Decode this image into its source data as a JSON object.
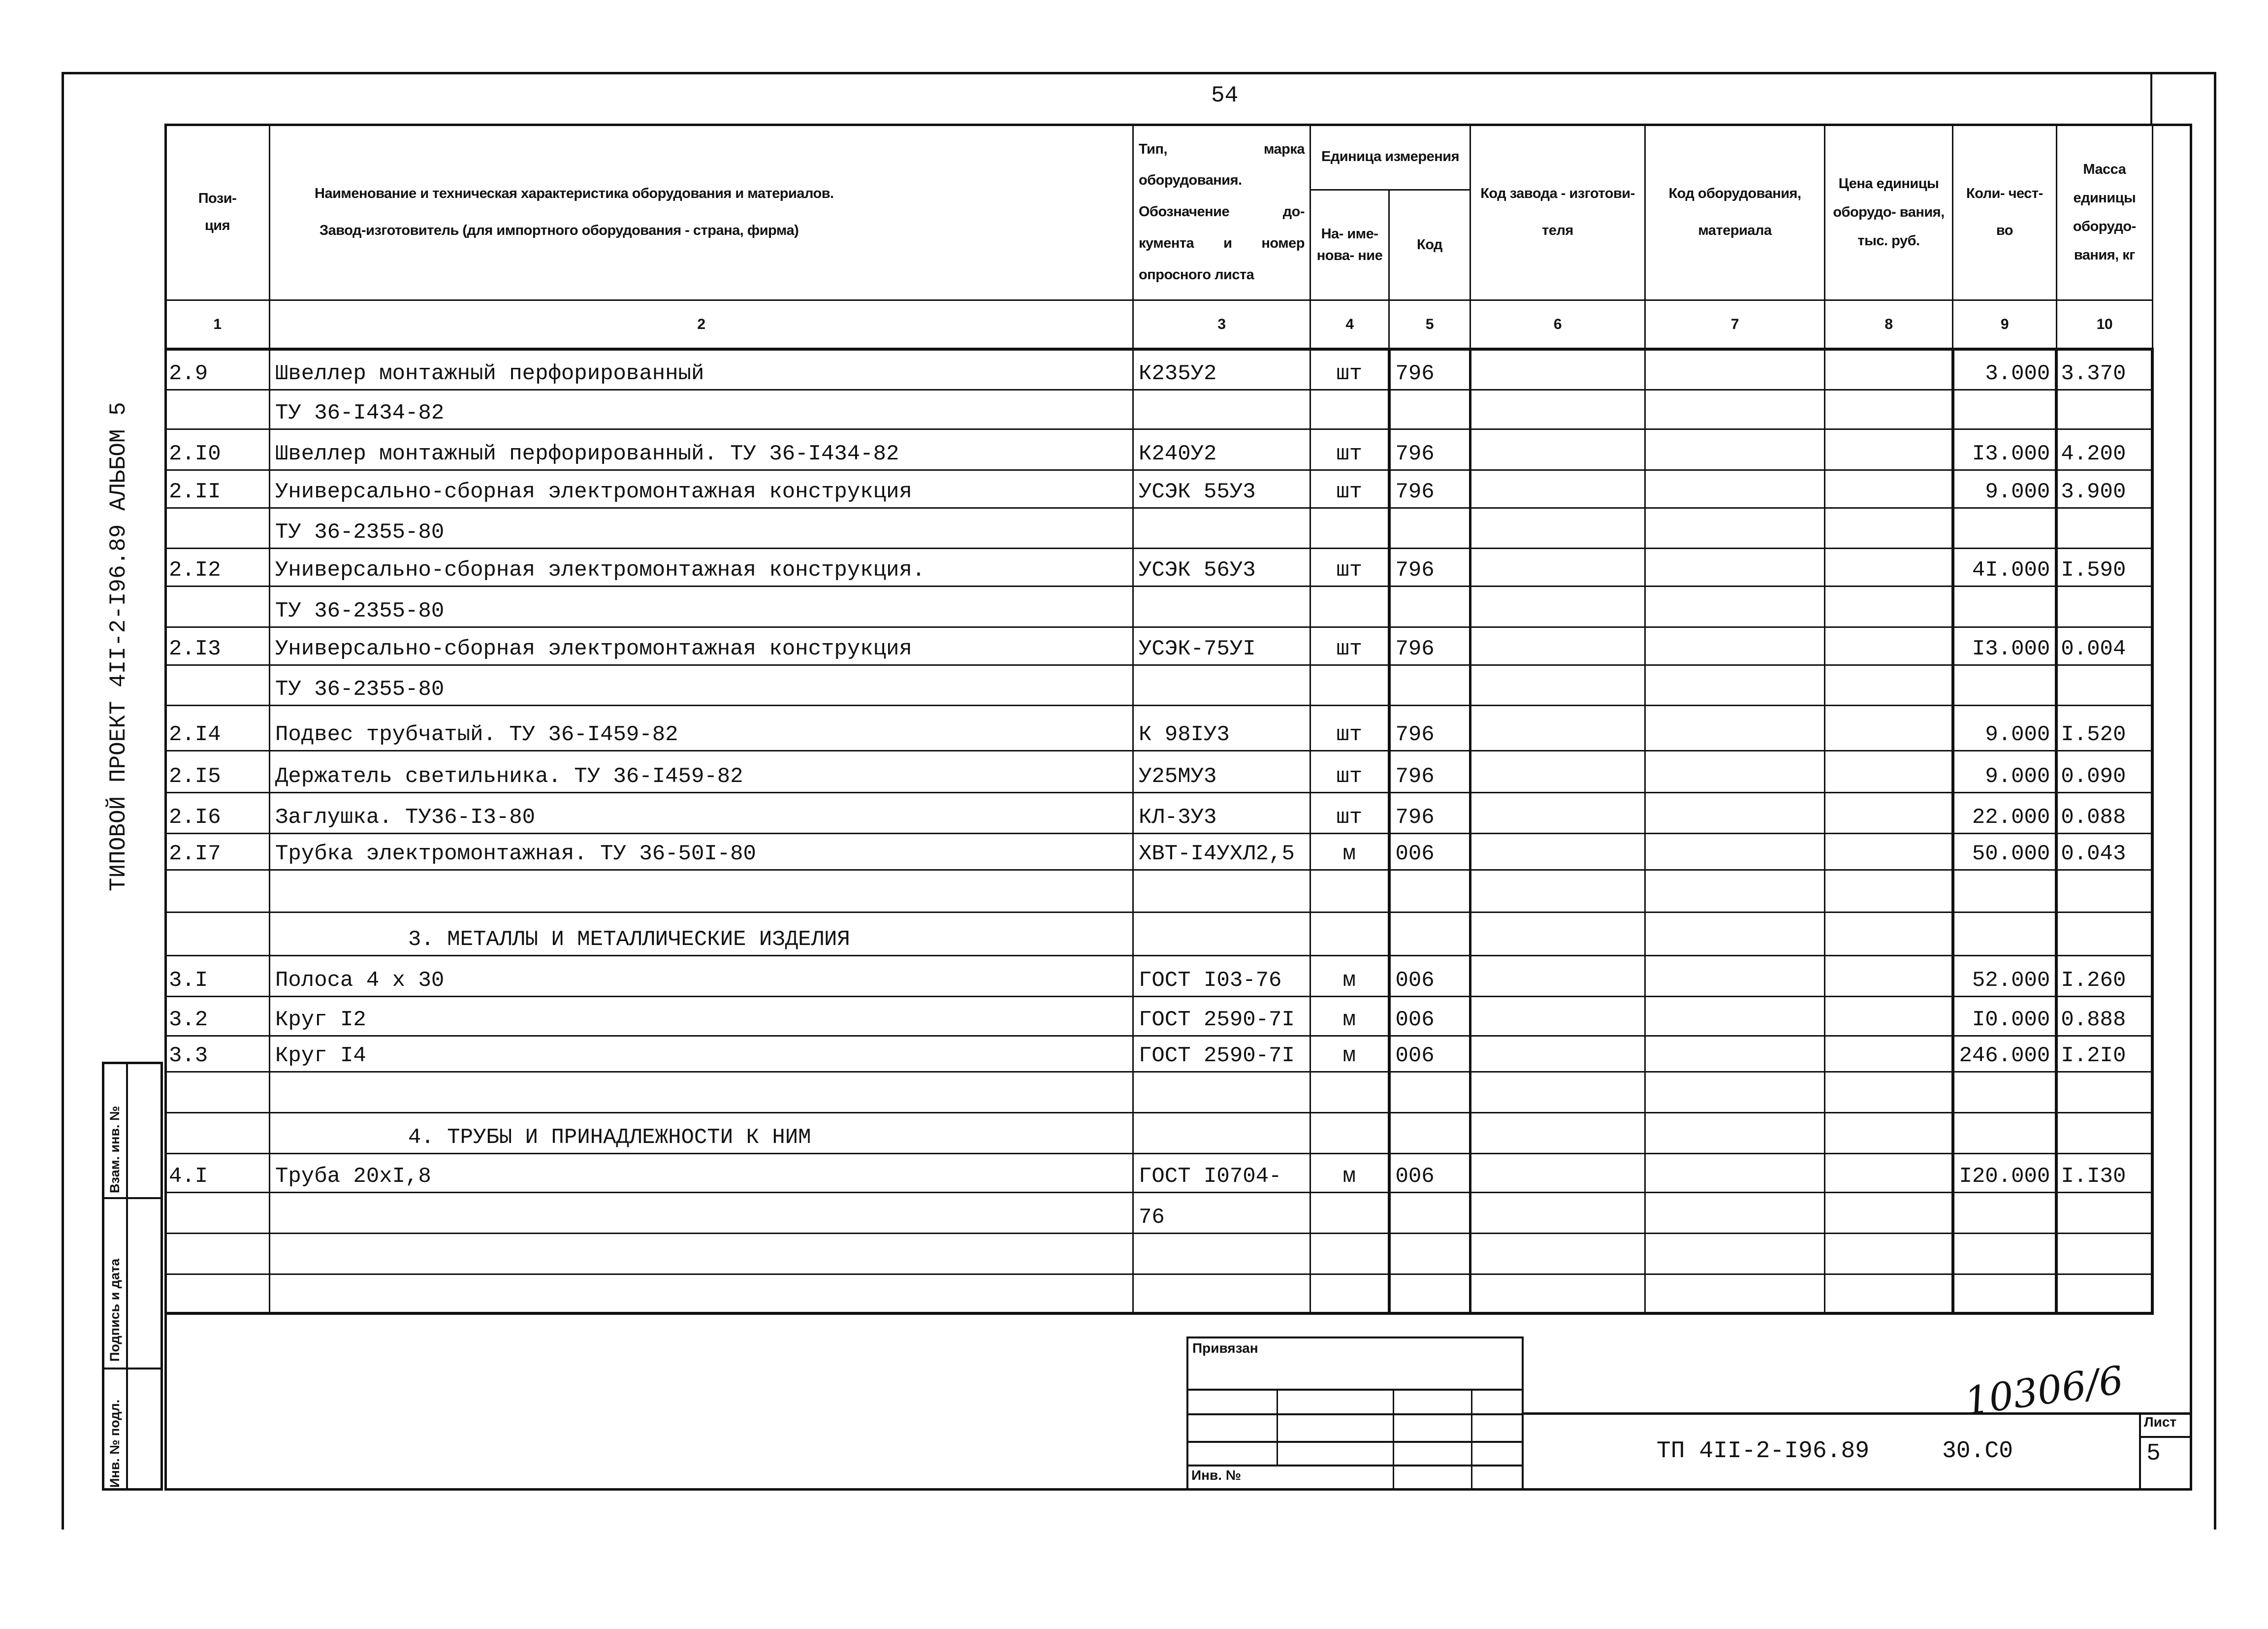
{
  "page_number": "54",
  "side_title": "ТИПОВОЙ ПРОЕКТ  4II-2-I96.89      АЛЬБОМ  5",
  "header": {
    "col1": "Пози-\nция",
    "col2_line1": "Наименование и техническая характеристика  оборудования и материалов.",
    "col2_line2": "Завод-изготовитель  (для импортного оборудования -  страна, фирма)",
    "col3": "Тип,  марка оборудования. Обозначение до- кумента и номер опросного листа",
    "unit_group": "Единица измерения",
    "col4": "На- име- нова- ние",
    "col5": "Код",
    "col6": "Код завода - изготови- теля",
    "col7": "Код оборудования, материала",
    "col8": "Цена единицы оборудо- вания, тыс. руб.",
    "col9": "Коли- чест- во",
    "col10": "Масса единицы оборудо- вания, кг",
    "numbers": [
      "1",
      "2",
      "3",
      "4",
      "5",
      "6",
      "7",
      "8",
      "9",
      "10"
    ]
  },
  "rows": [
    {
      "pos": "2.9",
      "name": "Швеллер монтажный перфорированный",
      "type": "К235У2",
      "unit": "шт",
      "code": "796",
      "qty": "3.000",
      "mass": "3.370"
    },
    {
      "name": "ТУ 36-I434-82"
    },
    {
      "pos": "2.I0",
      "name": "Швеллер монтажный перфорированный. ТУ 36-I434-82",
      "type": "К240У2",
      "unit": "шт",
      "code": "796",
      "qty": "I3.000",
      "mass": "4.200"
    },
    {
      "pos": "2.II",
      "name": "Универсально-сборная электромонтажная конструкция",
      "type": "УСЭК 55У3",
      "unit": "шт",
      "code": "796",
      "qty": "9.000",
      "mass": "3.900"
    },
    {
      "name": "ТУ 36-2355-80"
    },
    {
      "pos": "2.I2",
      "name": "Универсально-сборная электромонтажная конструкция.",
      "type": "УСЭК 56У3",
      "unit": "шт",
      "code": "796",
      "qty": "4I.000",
      "mass": "I.590"
    },
    {
      "name": "ТУ 36-2355-80"
    },
    {
      "pos": "2.I3",
      "name": "Универсально-сборная электромонтажная конструкция",
      "type": "УСЭК-75УI",
      "unit": "шт",
      "code": "796",
      "qty": "I3.000",
      "mass": "0.004"
    },
    {
      "name": "ТУ 36-2355-80"
    },
    {
      "pos": "2.I4",
      "name": "Подвес трубчатый. ТУ 36-I459-82",
      "type": "К 98IУ3",
      "unit": "шт",
      "code": "796",
      "qty": "9.000",
      "mass": "I.520"
    },
    {
      "pos": "2.I5",
      "name": "Держатель светильника. ТУ 36-I459-82",
      "type": "У25МУ3",
      "unit": "шт",
      "code": "796",
      "qty": "9.000",
      "mass": "0.090"
    },
    {
      "pos": "2.I6",
      "name": "Заглушка. ТУ36-I3-80",
      "type": "КЛ-3У3",
      "unit": "шт",
      "code": "796",
      "qty": "22.000",
      "mass": "0.088"
    },
    {
      "pos": "2.I7",
      "name": "Трубка электромонтажная. ТУ 36-50I-80",
      "type": "ХВТ-I4УХЛ2,5",
      "unit": "м",
      "code": "006",
      "qty": "50.000",
      "mass": "0.043"
    },
    {},
    {
      "section": "3. МЕТАЛЛЫ И МЕТАЛЛИЧЕСКИЕ ИЗДЕЛИЯ"
    },
    {
      "pos": "3.I",
      "name": "Полоса 4 х 30",
      "type": "ГОСТ I03-76",
      "unit": "м",
      "code": "006",
      "qty": "52.000",
      "mass": "I.260"
    },
    {
      "pos": "3.2",
      "name": "Круг I2",
      "type": "ГОСТ 2590-7I",
      "unit": "м",
      "code": "006",
      "qty": "I0.000",
      "mass": "0.888"
    },
    {
      "pos": "3.3",
      "name": "Круг I4",
      "type": "ГОСТ 2590-7I",
      "unit": "м",
      "code": "006",
      "qty": "246.000",
      "mass": "I.2I0"
    },
    {},
    {
      "section": "4. ТРУБЫ И ПРИНАДЛЕЖНОСТИ К НИМ"
    },
    {
      "pos": "4.I",
      "name": "Труба 20хI,8",
      "type": "ГОСТ I0704-",
      "unit": "м",
      "code": "006",
      "qty": "I20.000",
      "mass": "I.I30"
    },
    {
      "type": "76"
    },
    {},
    {}
  ],
  "stamp": {
    "field1": "Взам. инв. №",
    "field2": "Подпись и дата",
    "field3": "Инв. № подл."
  },
  "title_block": {
    "attached_label": "Привязан",
    "inv_label": "Инв. №",
    "handwritten_number": "10306/6",
    "document_code": "ТП 4II-2-I96.89",
    "document_part": "30.C0",
    "sheet_label": "Лист",
    "sheet_number": "5"
  }
}
